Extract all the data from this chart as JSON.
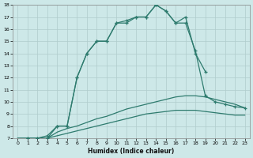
{
  "xlabel": "Humidex (Indice chaleur)",
  "background_color": "#cde8e8",
  "line_color": "#2e7b6e",
  "grid_color": "#b0cccc",
  "xlim": [
    -0.5,
    23.5
  ],
  "ylim": [
    7,
    18
  ],
  "xticks": [
    0,
    1,
    2,
    3,
    4,
    5,
    6,
    7,
    8,
    9,
    10,
    11,
    12,
    13,
    14,
    15,
    16,
    17,
    18,
    19,
    20,
    21,
    22,
    23
  ],
  "yticks": [
    7,
    8,
    9,
    10,
    11,
    12,
    13,
    14,
    15,
    16,
    17,
    18
  ],
  "line1_x": [
    1,
    2,
    3,
    4,
    5,
    6,
    7,
    8,
    9,
    10,
    11,
    12,
    13,
    14,
    15,
    16,
    17,
    18,
    19
  ],
  "line1_y": [
    7,
    7,
    7,
    8,
    8,
    12,
    14,
    15,
    15,
    16.5,
    16.7,
    17.0,
    17.0,
    18.0,
    17.5,
    16.5,
    17.0,
    14.0,
    12.5
  ],
  "line2_x": [
    1,
    2,
    3,
    4,
    5,
    6,
    7,
    8,
    9,
    10,
    11,
    12,
    13,
    14,
    15,
    16,
    17,
    18,
    19,
    20,
    21,
    22,
    23
  ],
  "line2_y": [
    7,
    7,
    7.2,
    8,
    8,
    12,
    14,
    15,
    15,
    16.5,
    16.5,
    17.0,
    17.0,
    18.0,
    17.5,
    16.5,
    16.5,
    14.2,
    10.5,
    10.0,
    9.8,
    9.6,
    9.5
  ],
  "line3_x": [
    0,
    1,
    2,
    3,
    4,
    5,
    6,
    7,
    8,
    9,
    10,
    11,
    12,
    13,
    14,
    15,
    16,
    17,
    18,
    19,
    20,
    21,
    22,
    23
  ],
  "line3_y": [
    7,
    7,
    7,
    7,
    7.5,
    7.8,
    8,
    8.3,
    8.6,
    8.8,
    9.1,
    9.4,
    9.6,
    9.8,
    10.0,
    10.2,
    10.4,
    10.5,
    10.5,
    10.4,
    10.2,
    10.0,
    9.8,
    9.5
  ],
  "line4_x": [
    0,
    1,
    2,
    3,
    4,
    5,
    6,
    7,
    8,
    9,
    10,
    11,
    12,
    13,
    14,
    15,
    16,
    17,
    18,
    19,
    20,
    21,
    22,
    23
  ],
  "line4_y": [
    7,
    7,
    7,
    7,
    7.2,
    7.4,
    7.6,
    7.8,
    8.0,
    8.2,
    8.4,
    8.6,
    8.8,
    9.0,
    9.1,
    9.2,
    9.3,
    9.3,
    9.3,
    9.2,
    9.1,
    9.0,
    8.9,
    8.9
  ]
}
